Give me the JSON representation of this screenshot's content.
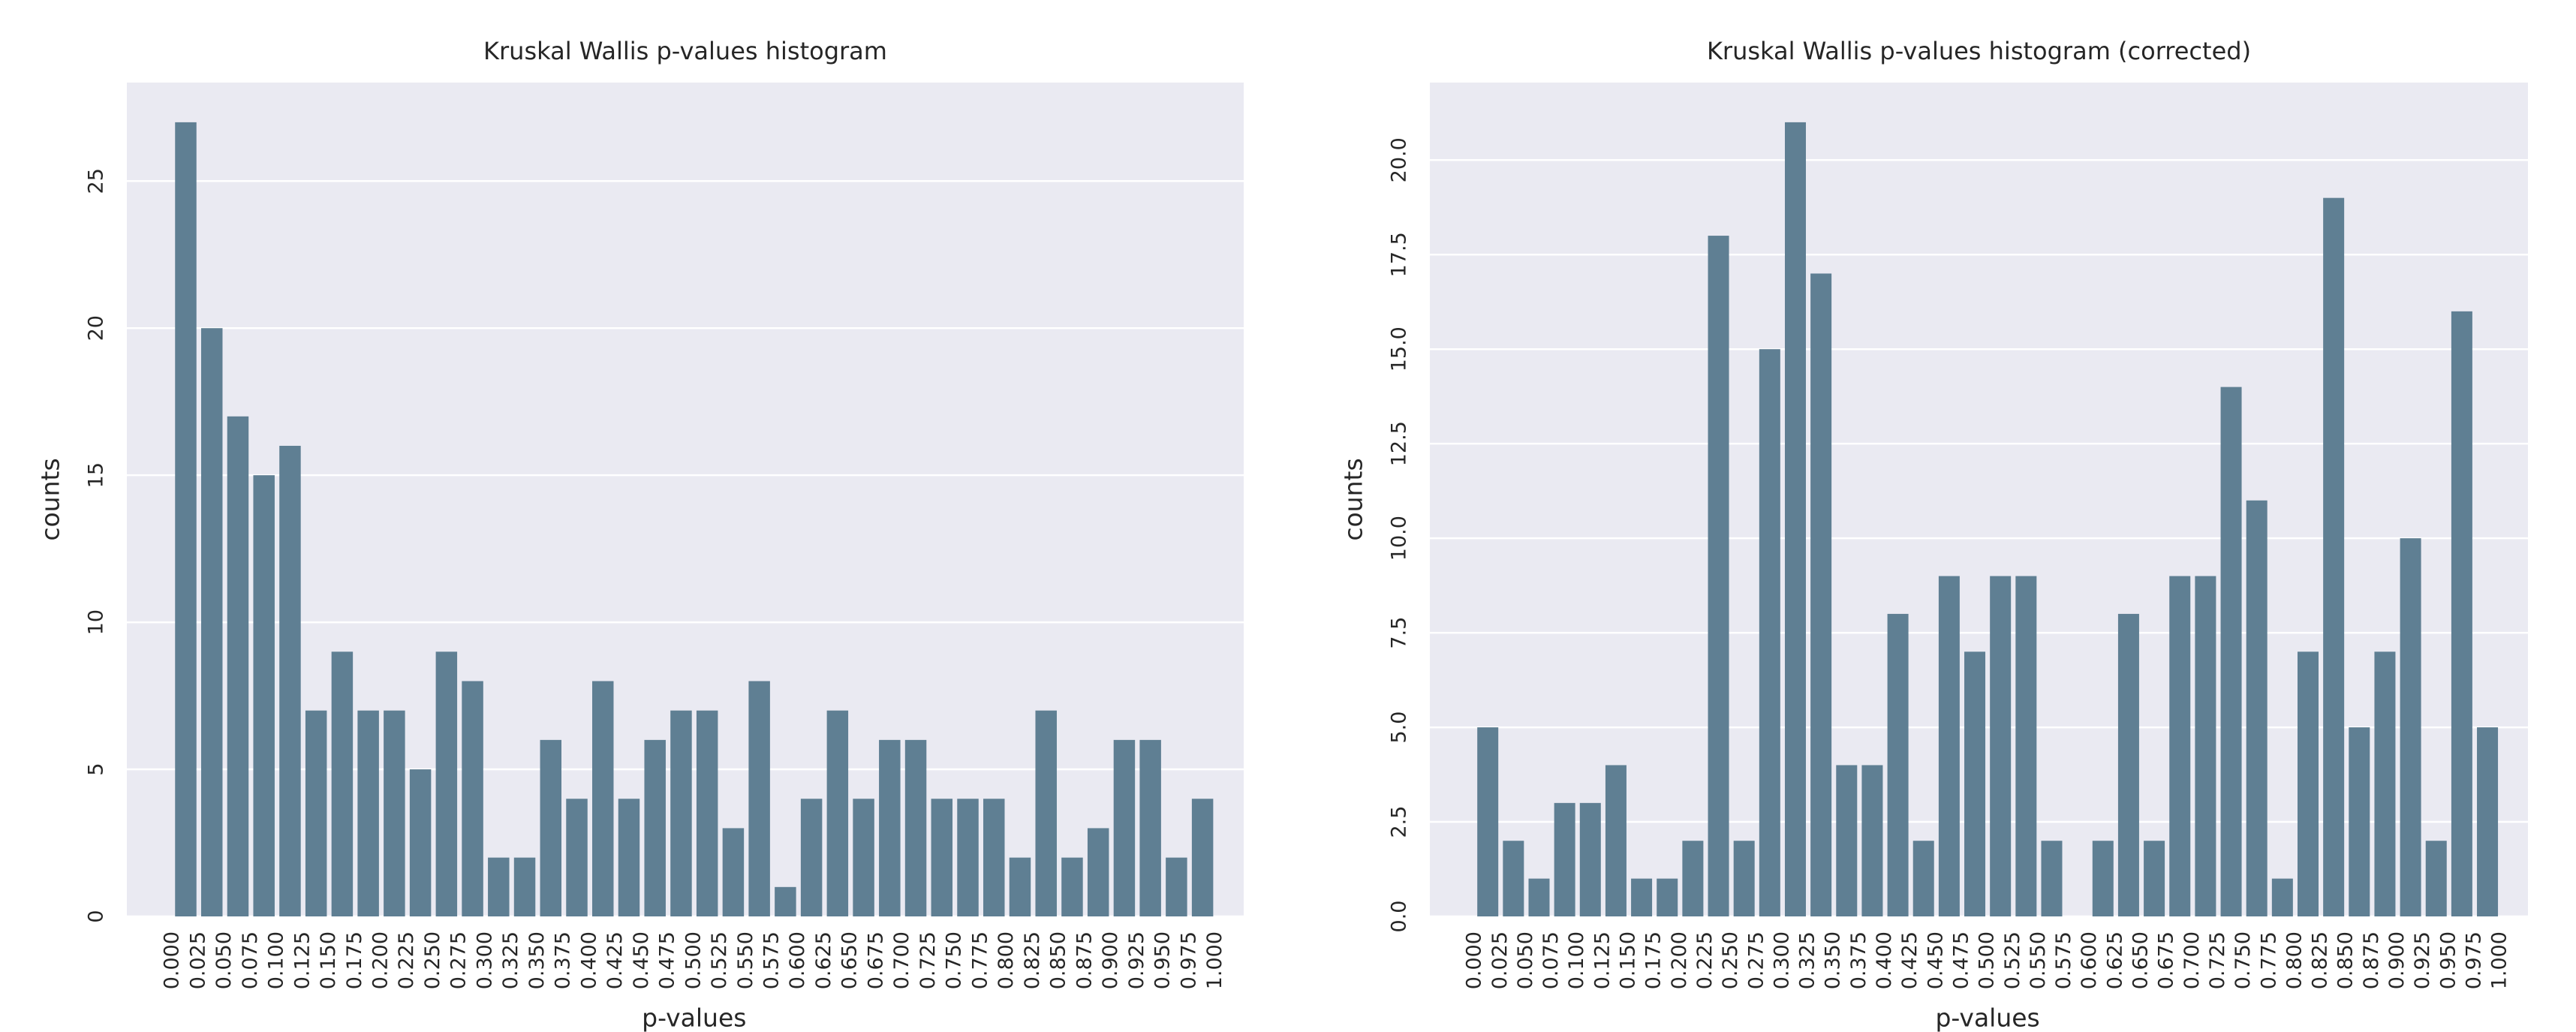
{
  "chart_data": [
    {
      "type": "histogram",
      "title": "Kruskal Wallis p-values histogram",
      "xlabel": "p-values",
      "ylabel": "counts",
      "color": "#5f7f93",
      "grid": true,
      "bins": [
        0.0,
        0.025,
        0.05,
        0.075,
        0.1,
        0.125,
        0.15,
        0.175,
        0.2,
        0.225,
        0.25,
        0.275,
        0.3,
        0.325,
        0.35,
        0.375,
        0.4,
        0.425,
        0.45,
        0.475,
        0.5,
        0.525,
        0.55,
        0.575,
        0.6,
        0.625,
        0.65,
        0.675,
        0.7,
        0.725,
        0.75,
        0.775,
        0.8,
        0.825,
        0.85,
        0.875,
        0.9,
        0.925,
        0.95,
        0.975,
        1.0
      ],
      "values": [
        27,
        20,
        17,
        15,
        16,
        7,
        9,
        7,
        7,
        5,
        9,
        8,
        2,
        2,
        6,
        4,
        8,
        4,
        6,
        7,
        7,
        3,
        8,
        1,
        4,
        7,
        4,
        6,
        6,
        4,
        4,
        4,
        2,
        7,
        2,
        3,
        6,
        6,
        2,
        4
      ],
      "xlim": [
        -0.044,
        1.027
      ],
      "ylim": [
        0,
        28.35
      ],
      "xticks": [
        {
          "value": 0.0,
          "label": "0.000"
        },
        {
          "value": 0.025,
          "label": "0.025"
        },
        {
          "value": 0.05,
          "label": "0.050"
        },
        {
          "value": 0.075,
          "label": "0.075"
        },
        {
          "value": 0.1,
          "label": "0.100"
        },
        {
          "value": 0.125,
          "label": "0.125"
        },
        {
          "value": 0.15,
          "label": "0.150"
        },
        {
          "value": 0.175,
          "label": "0.175"
        },
        {
          "value": 0.2,
          "label": "0.200"
        },
        {
          "value": 0.225,
          "label": "0.225"
        },
        {
          "value": 0.25,
          "label": "0.250"
        },
        {
          "value": 0.275,
          "label": "0.275"
        },
        {
          "value": 0.3,
          "label": "0.300"
        },
        {
          "value": 0.325,
          "label": "0.325"
        },
        {
          "value": 0.35,
          "label": "0.350"
        },
        {
          "value": 0.375,
          "label": "0.375"
        },
        {
          "value": 0.4,
          "label": "0.400"
        },
        {
          "value": 0.425,
          "label": "0.425"
        },
        {
          "value": 0.45,
          "label": "0.450"
        },
        {
          "value": 0.475,
          "label": "0.475"
        },
        {
          "value": 0.5,
          "label": "0.500"
        },
        {
          "value": 0.525,
          "label": "0.525"
        },
        {
          "value": 0.55,
          "label": "0.550"
        },
        {
          "value": 0.575,
          "label": "0.575"
        },
        {
          "value": 0.6,
          "label": "0.600"
        },
        {
          "value": 0.625,
          "label": "0.625"
        },
        {
          "value": 0.65,
          "label": "0.650"
        },
        {
          "value": 0.675,
          "label": "0.675"
        },
        {
          "value": 0.7,
          "label": "0.700"
        },
        {
          "value": 0.725,
          "label": "0.725"
        },
        {
          "value": 0.75,
          "label": "0.750"
        },
        {
          "value": 0.775,
          "label": "0.775"
        },
        {
          "value": 0.8,
          "label": "0.800"
        },
        {
          "value": 0.825,
          "label": "0.825"
        },
        {
          "value": 0.85,
          "label": "0.850"
        },
        {
          "value": 0.875,
          "label": "0.875"
        },
        {
          "value": 0.9,
          "label": "0.900"
        },
        {
          "value": 0.925,
          "label": "0.925"
        },
        {
          "value": 0.95,
          "label": "0.950"
        },
        {
          "value": 0.975,
          "label": "0.975"
        },
        {
          "value": 1.0,
          "label": "1.000"
        }
      ],
      "yticks": [
        0,
        5,
        10,
        15,
        20,
        25
      ]
    },
    {
      "type": "histogram",
      "title": "Kruskal Wallis p-values histogram (corrected)",
      "xlabel": "p-values",
      "ylabel": "counts",
      "color": "#5f7f93",
      "grid": true,
      "bins": [
        0.0,
        0.025,
        0.05,
        0.075,
        0.1,
        0.125,
        0.15,
        0.175,
        0.2,
        0.225,
        0.25,
        0.275,
        0.3,
        0.325,
        0.35,
        0.375,
        0.4,
        0.425,
        0.45,
        0.475,
        0.5,
        0.525,
        0.55,
        0.575,
        0.6,
        0.625,
        0.65,
        0.675,
        0.7,
        0.725,
        0.75,
        0.775,
        0.8,
        0.825,
        0.85,
        0.875,
        0.9,
        0.925,
        0.95,
        0.975,
        1.0
      ],
      "values": [
        5,
        2,
        1,
        3,
        3,
        4,
        1,
        1,
        2,
        18,
        2,
        15,
        21,
        17,
        4,
        4,
        8,
        2,
        9,
        7,
        9,
        9,
        2,
        0,
        2,
        8,
        2,
        9,
        9,
        14,
        11,
        1,
        7,
        19,
        5,
        7,
        10,
        2,
        16,
        5
      ],
      "xlim": [
        -0.044,
        1.027
      ],
      "ylim": [
        0,
        22.05
      ],
      "xticks": [
        {
          "value": 0.0,
          "label": "0.000"
        },
        {
          "value": 0.025,
          "label": "0.025"
        },
        {
          "value": 0.05,
          "label": "0.050"
        },
        {
          "value": 0.075,
          "label": "0.075"
        },
        {
          "value": 0.1,
          "label": "0.100"
        },
        {
          "value": 0.125,
          "label": "0.125"
        },
        {
          "value": 0.15,
          "label": "0.150"
        },
        {
          "value": 0.175,
          "label": "0.175"
        },
        {
          "value": 0.2,
          "label": "0.200"
        },
        {
          "value": 0.225,
          "label": "0.225"
        },
        {
          "value": 0.25,
          "label": "0.250"
        },
        {
          "value": 0.275,
          "label": "0.275"
        },
        {
          "value": 0.3,
          "label": "0.300"
        },
        {
          "value": 0.325,
          "label": "0.325"
        },
        {
          "value": 0.35,
          "label": "0.350"
        },
        {
          "value": 0.375,
          "label": "0.375"
        },
        {
          "value": 0.4,
          "label": "0.400"
        },
        {
          "value": 0.425,
          "label": "0.425"
        },
        {
          "value": 0.45,
          "label": "0.450"
        },
        {
          "value": 0.475,
          "label": "0.475"
        },
        {
          "value": 0.5,
          "label": "0.500"
        },
        {
          "value": 0.525,
          "label": "0.525"
        },
        {
          "value": 0.55,
          "label": "0.550"
        },
        {
          "value": 0.575,
          "label": "0.575"
        },
        {
          "value": 0.6,
          "label": "0.600"
        },
        {
          "value": 0.625,
          "label": "0.625"
        },
        {
          "value": 0.65,
          "label": "0.650"
        },
        {
          "value": 0.675,
          "label": "0.675"
        },
        {
          "value": 0.7,
          "label": "0.700"
        },
        {
          "value": 0.725,
          "label": "0.725"
        },
        {
          "value": 0.75,
          "label": "0.750"
        },
        {
          "value": 0.775,
          "label": "0.775"
        },
        {
          "value": 0.8,
          "label": "0.800"
        },
        {
          "value": 0.825,
          "label": "0.825"
        },
        {
          "value": 0.85,
          "label": "0.850"
        },
        {
          "value": 0.875,
          "label": "0.875"
        },
        {
          "value": 0.9,
          "label": "0.900"
        },
        {
          "value": 0.925,
          "label": "0.925"
        },
        {
          "value": 0.95,
          "label": "0.950"
        },
        {
          "value": 0.975,
          "label": "0.975"
        },
        {
          "value": 1.0,
          "label": "1.000"
        }
      ],
      "yticks": [
        {
          "value": 0,
          "label": "0.0"
        },
        {
          "value": 2.5,
          "label": "2.5"
        },
        {
          "value": 5,
          "label": "5.0"
        },
        {
          "value": 7.5,
          "label": "7.5"
        },
        {
          "value": 10,
          "label": "10.0"
        },
        {
          "value": 12.5,
          "label": "12.5"
        },
        {
          "value": 15,
          "label": "15.0"
        },
        {
          "value": 17.5,
          "label": "17.5"
        },
        {
          "value": 20,
          "label": "20.0"
        }
      ]
    }
  ]
}
